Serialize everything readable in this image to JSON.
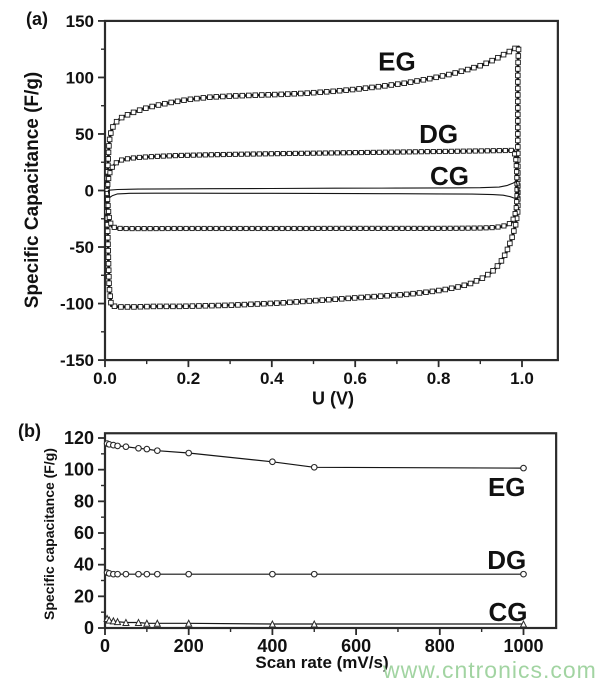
{
  "watermark": {
    "text": "www.cntronics.com",
    "color": "#a2d4a2"
  },
  "chart_data": [
    {
      "type": "line",
      "panel_label": "(a)",
      "title": "",
      "xlabel": "U (V)",
      "ylabel": "Specific Capacitance (F/g)",
      "xlim": [
        0,
        1.086
      ],
      "ylim": [
        -150,
        150
      ],
      "grid": false,
      "legend_position": "none",
      "xtick_values": [
        0,
        0.2,
        0.4,
        0.6,
        0.8,
        1.0
      ],
      "xtick_labels": [
        "0.0",
        "0.2",
        "0.4",
        "0.6",
        "0.8",
        "1.0"
      ],
      "ytick_values": [
        150,
        100,
        50,
        0,
        -50,
        -100,
        -150
      ],
      "ytick_labels": [
        "150",
        "100",
        "50",
        "0",
        "-50",
        "-100",
        "-150"
      ],
      "xminor_step": 0.1,
      "yminor_step": 25,
      "annotations": [
        {
          "text": "EG",
          "x": 0.7,
          "y": 114
        },
        {
          "text": "DG",
          "x": 0.8,
          "y": 50
        },
        {
          "text": "CG",
          "x": 0.826,
          "y": 13
        }
      ],
      "series": [
        {
          "name": "EG",
          "marker": "square",
          "loop": true,
          "points": [
            [
              0.005,
              5
            ],
            [
              0.007,
              22
            ],
            [
              0.009,
              38
            ],
            [
              0.012,
              48
            ],
            [
              0.017,
              55
            ],
            [
              0.025,
              60
            ],
            [
              0.04,
              64.5
            ],
            [
              0.06,
              68
            ],
            [
              0.09,
              72
            ],
            [
              0.12,
              75
            ],
            [
              0.16,
              78
            ],
            [
              0.2,
              80.5
            ],
            [
              0.25,
              82.5
            ],
            [
              0.3,
              83.5
            ],
            [
              0.36,
              84.3
            ],
            [
              0.42,
              85
            ],
            [
              0.48,
              86
            ],
            [
              0.54,
              87.5
            ],
            [
              0.6,
              89.5
            ],
            [
              0.66,
              92
            ],
            [
              0.72,
              95
            ],
            [
              0.78,
              99
            ],
            [
              0.83,
              103
            ],
            [
              0.87,
              107
            ],
            [
              0.905,
              111
            ],
            [
              0.935,
              116
            ],
            [
              0.955,
              120
            ],
            [
              0.97,
              123
            ],
            [
              0.982,
              125.5
            ],
            [
              0.992,
              127
            ],
            [
              0.99,
              108
            ],
            [
              0.99,
              88
            ],
            [
              0.99,
              66
            ],
            [
              0.99,
              44
            ],
            [
              0.99,
              22
            ],
            [
              0.99,
              0
            ],
            [
              0.99,
              -18
            ],
            [
              0.985,
              -30
            ],
            [
              0.975,
              -43
            ],
            [
              0.962,
              -55
            ],
            [
              0.948,
              -64
            ],
            [
              0.928,
              -72
            ],
            [
              0.903,
              -78
            ],
            [
              0.875,
              -82.5
            ],
            [
              0.845,
              -85.5
            ],
            [
              0.81,
              -88
            ],
            [
              0.77,
              -90
            ],
            [
              0.72,
              -92
            ],
            [
              0.66,
              -93.5
            ],
            [
              0.6,
              -95
            ],
            [
              0.54,
              -96.5
            ],
            [
              0.48,
              -98
            ],
            [
              0.42,
              -99.5
            ],
            [
              0.36,
              -100.5
            ],
            [
              0.3,
              -101.5
            ],
            [
              0.24,
              -102
            ],
            [
              0.18,
              -102.5
            ],
            [
              0.12,
              -102.5
            ],
            [
              0.07,
              -103
            ],
            [
              0.035,
              -103
            ],
            [
              0.015,
              -102
            ],
            [
              0.01,
              -85
            ],
            [
              0.008,
              -58
            ],
            [
              0.006,
              -30
            ],
            [
              0.005,
              -8
            ],
            [
              0.005,
              5
            ]
          ]
        },
        {
          "name": "DG",
          "marker": "square",
          "loop": true,
          "points": [
            [
              0.005,
              0
            ],
            [
              0.008,
              9
            ],
            [
              0.012,
              16
            ],
            [
              0.018,
              21
            ],
            [
              0.027,
              24.5
            ],
            [
              0.04,
              27
            ],
            [
              0.06,
              28.5
            ],
            [
              0.09,
              29.5
            ],
            [
              0.13,
              30.3
            ],
            [
              0.18,
              31
            ],
            [
              0.24,
              31.5
            ],
            [
              0.31,
              32
            ],
            [
              0.38,
              32.4
            ],
            [
              0.45,
              32.8
            ],
            [
              0.52,
              33.1
            ],
            [
              0.6,
              33.5
            ],
            [
              0.68,
              33.9
            ],
            [
              0.76,
              34.3
            ],
            [
              0.84,
              34.7
            ],
            [
              0.9,
              35
            ],
            [
              0.95,
              35.3
            ],
            [
              0.98,
              35.5
            ],
            [
              0.985,
              28
            ],
            [
              0.987,
              18
            ],
            [
              0.988,
              6
            ],
            [
              0.988,
              -6
            ],
            [
              0.986,
              -16
            ],
            [
              0.982,
              -23
            ],
            [
              0.975,
              -28
            ],
            [
              0.965,
              -30.5
            ],
            [
              0.95,
              -32
            ],
            [
              0.93,
              -32.8
            ],
            [
              0.9,
              -33.2
            ],
            [
              0.85,
              -33.4
            ],
            [
              0.79,
              -33.5
            ],
            [
              0.72,
              -33.5
            ],
            [
              0.64,
              -33.5
            ],
            [
              0.56,
              -33.5
            ],
            [
              0.48,
              -33.6
            ],
            [
              0.4,
              -33.6
            ],
            [
              0.32,
              -33.6
            ],
            [
              0.24,
              -33.6
            ],
            [
              0.17,
              -33.6
            ],
            [
              0.11,
              -33.7
            ],
            [
              0.06,
              -33.7
            ],
            [
              0.03,
              -33.5
            ],
            [
              0.017,
              -32
            ],
            [
              0.011,
              -26
            ],
            [
              0.008,
              -16
            ],
            [
              0.006,
              -6
            ],
            [
              0.005,
              0
            ]
          ]
        },
        {
          "name": "CG",
          "marker": "none",
          "loop": true,
          "points": [
            [
              0.01,
              0.3
            ],
            [
              0.03,
              0.9
            ],
            [
              0.08,
              1.2
            ],
            [
              0.15,
              1.4
            ],
            [
              0.25,
              1.6
            ],
            [
              0.4,
              1.8
            ],
            [
              0.55,
              2.0
            ],
            [
              0.7,
              2.1
            ],
            [
              0.82,
              2.3
            ],
            [
              0.9,
              2.5
            ],
            [
              0.945,
              3
            ],
            [
              0.965,
              4.5
            ],
            [
              0.978,
              6.5
            ],
            [
              0.986,
              8
            ],
            [
              0.99,
              3
            ],
            [
              0.992,
              -3
            ],
            [
              0.989,
              -6.5
            ],
            [
              0.983,
              -7
            ],
            [
              0.972,
              -5.5
            ],
            [
              0.955,
              -4.2
            ],
            [
              0.93,
              -3.6
            ],
            [
              0.88,
              -3.2
            ],
            [
              0.8,
              -3.0
            ],
            [
              0.7,
              -2.8
            ],
            [
              0.6,
              -2.7
            ],
            [
              0.5,
              -2.6
            ],
            [
              0.4,
              -2.5
            ],
            [
              0.3,
              -2.5
            ],
            [
              0.2,
              -2.4
            ],
            [
              0.12,
              -2.4
            ],
            [
              0.06,
              -2.5
            ],
            [
              0.03,
              -3
            ],
            [
              0.018,
              -4.5
            ],
            [
              0.012,
              -6
            ],
            [
              0.009,
              -3
            ],
            [
              0.008,
              0
            ],
            [
              0.01,
              0.3
            ]
          ]
        }
      ]
    },
    {
      "type": "line",
      "panel_label": "(b)",
      "title": "",
      "xlabel": "Scan rate (mV/s)",
      "ylabel": "Specific capacitance (F/g)",
      "xlim": [
        0,
        1078
      ],
      "ylim": [
        0,
        123
      ],
      "grid": false,
      "legend_position": "none",
      "xtick_values": [
        0,
        200,
        400,
        600,
        800,
        1000
      ],
      "xtick_labels": [
        "0",
        "200",
        "400",
        "600",
        "800",
        "1000"
      ],
      "ytick_values": [
        120,
        100,
        80,
        60,
        40,
        20,
        0
      ],
      "ytick_labels": [
        "120",
        "100",
        "80",
        "60",
        "40",
        "20",
        "0"
      ],
      "xminor_step": 100,
      "yminor_step": 10,
      "annotations": [
        {
          "text": "EG",
          "x": 960,
          "y": 89
        },
        {
          "text": "DG",
          "x": 960,
          "y": 43
        },
        {
          "text": "CG",
          "x": 963,
          "y": 10
        }
      ],
      "series": [
        {
          "name": "EG",
          "marker": "circle",
          "x": [
            5,
            10,
            20,
            30,
            50,
            80,
            100,
            125,
            200,
            400,
            500,
            1000
          ],
          "y": [
            116.5,
            116,
            115.5,
            115,
            114.5,
            113.5,
            113,
            112,
            110.5,
            105,
            101.5,
            101
          ]
        },
        {
          "name": "DG",
          "marker": "circle",
          "x": [
            5,
            10,
            20,
            30,
            50,
            80,
            100,
            125,
            200,
            400,
            500,
            1000
          ],
          "y": [
            35,
            34.5,
            34,
            34,
            34,
            34,
            34,
            34,
            34,
            34,
            34,
            34
          ]
        },
        {
          "name": "CG",
          "marker": "triangle",
          "x": [
            5,
            10,
            20,
            30,
            50,
            80,
            100,
            125,
            200,
            400,
            500,
            1000
          ],
          "y": [
            6,
            5,
            4.5,
            4,
            3.5,
            3.5,
            3,
            3,
            3,
            2.5,
            2.5,
            2.5
          ]
        }
      ]
    }
  ]
}
